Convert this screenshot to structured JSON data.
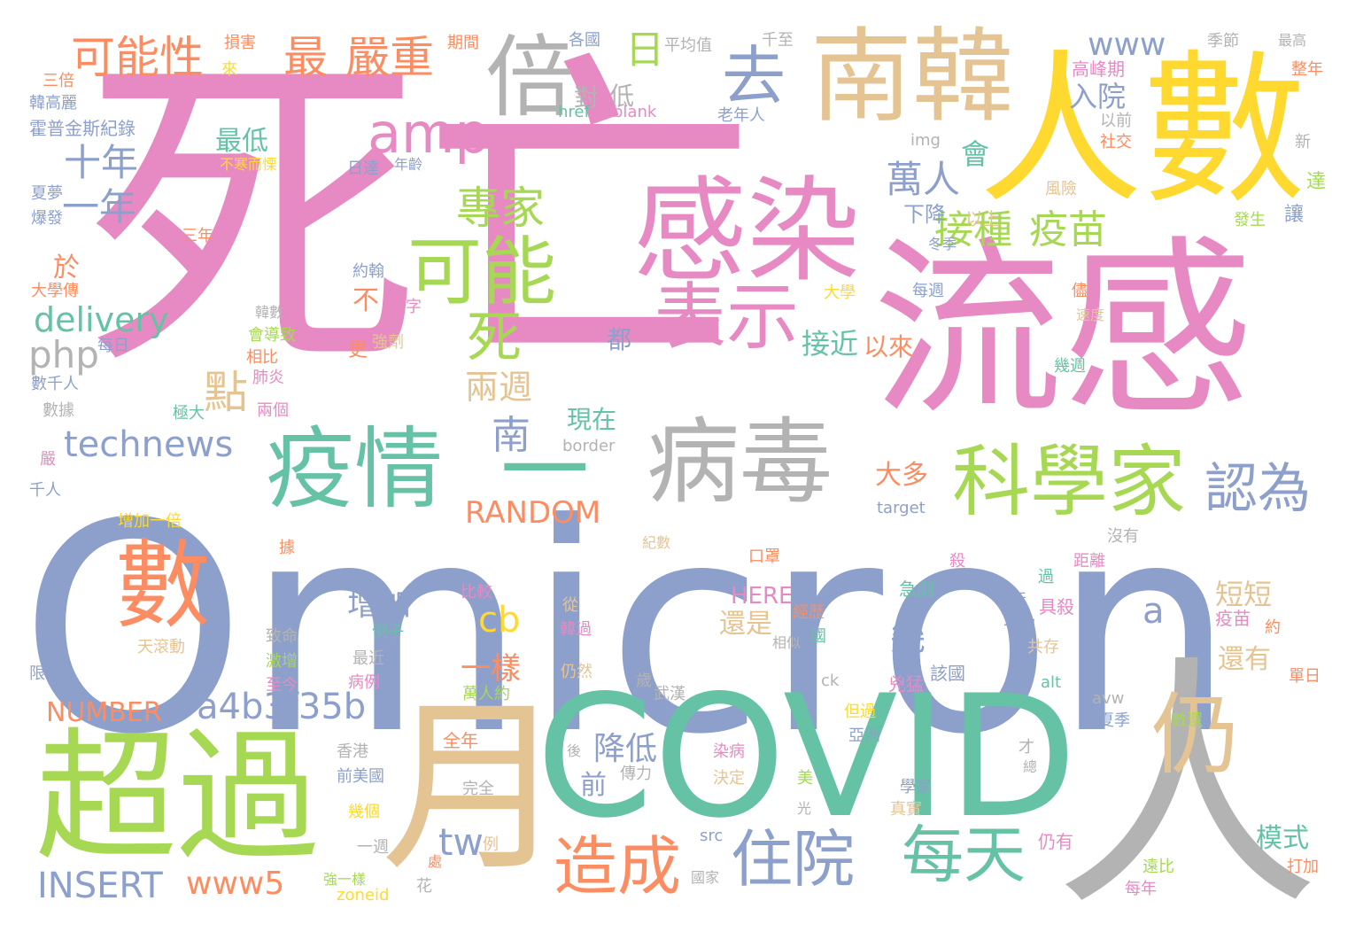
{
  "palette": {
    "blue": "#8da0cb",
    "pink": "#e78ac3",
    "green": "#66c2a5",
    "lime": "#a6d854",
    "orange": "#fc8d62",
    "yellow": "#ffd92f",
    "tan": "#e5c494",
    "gray": "#b3b3b3"
  },
  "words": [
    {
      "text": "死亡",
      "color": "pink"
    },
    {
      "text": "Omicron",
      "color": "blue"
    },
    {
      "text": "流感",
      "color": "pink"
    },
    {
      "text": "人數",
      "color": "yellow"
    },
    {
      "text": "感染",
      "color": "pink"
    },
    {
      "text": "南韓",
      "color": "tan"
    },
    {
      "text": "COVID",
      "color": "green"
    },
    {
      "text": "人",
      "color": "gray"
    },
    {
      "text": "月",
      "color": "tan"
    },
    {
      "text": "超過",
      "color": "lime"
    },
    {
      "text": "數",
      "color": "orange"
    },
    {
      "text": "疫情",
      "color": "green"
    },
    {
      "text": "病毒",
      "color": "gray"
    },
    {
      "text": "一",
      "color": "green"
    },
    {
      "text": "科學家",
      "color": "lime"
    },
    {
      "text": "仍",
      "color": "tan"
    },
    {
      "text": "可能",
      "color": "lime"
    },
    {
      "text": "表示",
      "color": "pink"
    },
    {
      "text": "倍",
      "color": "gray"
    },
    {
      "text": "去",
      "color": "blue"
    },
    {
      "text": "可能性",
      "color": "orange"
    },
    {
      "text": "最",
      "color": "orange"
    },
    {
      "text": "嚴重",
      "color": "orange"
    },
    {
      "text": "日",
      "color": "lime"
    },
    {
      "text": "amp",
      "color": "pink"
    },
    {
      "text": "www",
      "color": "blue"
    },
    {
      "text": "十年",
      "color": "blue"
    },
    {
      "text": "一年",
      "color": "blue"
    },
    {
      "text": "專家",
      "color": "lime"
    },
    {
      "text": "死",
      "color": "lime"
    },
    {
      "text": "接種",
      "color": "lime"
    },
    {
      "text": "疫苗",
      "color": "lime"
    },
    {
      "text": "萬人",
      "color": "blue"
    },
    {
      "text": "認為",
      "color": "blue"
    },
    {
      "text": "每天",
      "color": "green"
    },
    {
      "text": "住院",
      "color": "blue"
    },
    {
      "text": "造成",
      "color": "orange"
    },
    {
      "text": "delivery",
      "color": "green"
    },
    {
      "text": "php",
      "color": "gray"
    },
    {
      "text": "technews",
      "color": "blue"
    },
    {
      "text": "點",
      "color": "tan"
    },
    {
      "text": "兩週",
      "color": "tan"
    },
    {
      "text": "南",
      "color": "blue"
    },
    {
      "text": "RANDOM",
      "color": "orange"
    },
    {
      "text": "a4b3f35b",
      "color": "blue"
    },
    {
      "text": "NUMBER",
      "color": "orange"
    },
    {
      "text": "INSERT",
      "color": "blue"
    },
    {
      "text": "www5",
      "color": "orange"
    },
    {
      "text": "tw",
      "color": "blue"
    },
    {
      "text": "cb",
      "color": "yellow"
    },
    {
      "text": "n",
      "color": "blue"
    },
    {
      "text": "一樣",
      "color": "orange"
    },
    {
      "text": "降低",
      "color": "blue"
    },
    {
      "text": "前",
      "color": "blue"
    },
    {
      "text": "增加",
      "color": "blue"
    },
    {
      "text": "幾",
      "color": "blue"
    },
    {
      "text": "現在",
      "color": "green"
    },
    {
      "text": "大多",
      "color": "orange"
    },
    {
      "text": "最低",
      "color": "green"
    },
    {
      "text": "已",
      "color": "pink"
    },
    {
      "text": "會",
      "color": "green"
    },
    {
      "text": "入院",
      "color": "blue"
    },
    {
      "text": "對",
      "color": "gray"
    },
    {
      "text": "低",
      "color": "gray"
    },
    {
      "text": "下降",
      "color": "blue"
    },
    {
      "text": "以上",
      "color": "tan"
    },
    {
      "text": "接近",
      "color": "green"
    },
    {
      "text": "以來",
      "color": "orange"
    },
    {
      "text": "於",
      "color": "orange"
    },
    {
      "text": "不",
      "color": "orange"
    },
    {
      "text": "都",
      "color": "blue"
    },
    {
      "text": "HERE",
      "color": "pink"
    },
    {
      "text": "還是",
      "color": "tan"
    },
    {
      "text": "短短",
      "color": "tan"
    },
    {
      "text": "a",
      "color": "blue"
    },
    {
      "text": "還有",
      "color": "tan"
    },
    {
      "text": "模式",
      "color": "green"
    },
    {
      "text": "季節",
      "color": "gray"
    },
    {
      "text": "最高",
      "color": "gray"
    },
    {
      "text": "高峰期",
      "color": "pink"
    },
    {
      "text": "整年",
      "color": "orange"
    },
    {
      "text": "平均值",
      "color": "gray"
    },
    {
      "text": "各國",
      "color": "blue"
    },
    {
      "text": "千至",
      "color": "gray"
    },
    {
      "text": "期間",
      "color": "orange"
    },
    {
      "text": "損害",
      "color": "orange"
    },
    {
      "text": "來",
      "color": "yellow"
    },
    {
      "text": "三倍",
      "color": "orange"
    },
    {
      "text": "韓高麗",
      "color": "blue"
    },
    {
      "text": "霍普金斯紀錄",
      "color": "blue"
    },
    {
      "text": "不寒而慄",
      "color": "yellow"
    },
    {
      "text": "日達",
      "color": "blue"
    },
    {
      "text": "年齡",
      "color": "blue"
    },
    {
      "text": "夏夢",
      "color": "blue"
    },
    {
      "text": "爆發",
      "color": "blue"
    },
    {
      "text": "三年",
      "color": "orange"
    },
    {
      "text": "約翰",
      "color": "blue"
    },
    {
      "text": "大學傳",
      "color": "orange"
    },
    {
      "text": "數字",
      "color": "pink"
    },
    {
      "text": "韓數",
      "color": "gray"
    },
    {
      "text": "會導致",
      "color": "lime"
    },
    {
      "text": "每日",
      "color": "blue"
    },
    {
      "text": "強劑",
      "color": "tan"
    },
    {
      "text": "相比",
      "color": "orange"
    },
    {
      "text": "更",
      "color": "orange"
    },
    {
      "text": "肺炎",
      "color": "pink"
    },
    {
      "text": "數千人",
      "color": "blue"
    },
    {
      "text": "兩個",
      "color": "pink"
    },
    {
      "text": "極大",
      "color": "green"
    },
    {
      "text": "數據",
      "color": "gray"
    },
    {
      "text": "嚴",
      "color": "pink"
    },
    {
      "text": "千人",
      "color": "blue"
    },
    {
      "text": "增加一倍",
      "color": "yellow"
    },
    {
      "text": "據",
      "color": "orange"
    },
    {
      "text": "天滾動",
      "color": "tan"
    },
    {
      "text": "限制",
      "color": "blue"
    },
    {
      "text": "致命",
      "color": "gray"
    },
    {
      "text": "例子",
      "color": "green"
    },
    {
      "text": "最近",
      "color": "gray"
    },
    {
      "text": "激增",
      "color": "lime"
    },
    {
      "text": "病例",
      "color": "pink"
    },
    {
      "text": "至今",
      "color": "pink"
    },
    {
      "text": "比較",
      "color": "pink"
    },
    {
      "text": "從",
      "color": "tan"
    },
    {
      "text": "韓過",
      "color": "pink"
    },
    {
      "text": "口罩",
      "color": "orange"
    },
    {
      "text": "殺",
      "color": "pink"
    },
    {
      "text": "經歷",
      "color": "orange"
    },
    {
      "text": "國",
      "color": "green"
    },
    {
      "text": "相似",
      "color": "gray"
    },
    {
      "text": "急劇",
      "color": "green"
    },
    {
      "text": "兇猛",
      "color": "pink"
    },
    {
      "text": "該國",
      "color": "blue"
    },
    {
      "text": "距離",
      "color": "pink"
    },
    {
      "text": "沒有",
      "color": "gray"
    },
    {
      "text": "過",
      "color": "green"
    },
    {
      "text": "天",
      "color": "blue"
    },
    {
      "text": "具殺",
      "color": "pink"
    },
    {
      "text": "平均",
      "color": "blue"
    },
    {
      "text": "共存",
      "color": "tan"
    },
    {
      "text": "疫苗",
      "color": "pink"
    },
    {
      "text": "約",
      "color": "orange"
    },
    {
      "text": "單日",
      "color": "orange"
    },
    {
      "text": "武漢",
      "color": "gray"
    },
    {
      "text": "ck",
      "color": "gray"
    },
    {
      "text": "但過",
      "color": "yellow"
    },
    {
      "text": "亞洲",
      "color": "blue"
    },
    {
      "text": "alt",
      "color": "green"
    },
    {
      "text": "avw",
      "color": "gray"
    },
    {
      "text": "夏季",
      "color": "blue"
    },
    {
      "text": "數還",
      "color": "lime"
    },
    {
      "text": "萬人約",
      "color": "lime"
    },
    {
      "text": "仍然",
      "color": "tan"
    },
    {
      "text": "歲",
      "color": "gray"
    },
    {
      "text": "香港",
      "color": "gray"
    },
    {
      "text": "前美國",
      "color": "blue"
    },
    {
      "text": "全年",
      "color": "orange"
    },
    {
      "text": "完全",
      "color": "gray"
    },
    {
      "text": "後",
      "color": "gray"
    },
    {
      "text": "傳力",
      "color": "gray"
    },
    {
      "text": "染病",
      "color": "pink"
    },
    {
      "text": "決定",
      "color": "tan"
    },
    {
      "text": "美",
      "color": "lime"
    },
    {
      "text": "學家",
      "color": "blue"
    },
    {
      "text": "真實",
      "color": "tan"
    },
    {
      "text": "才",
      "color": "gray"
    },
    {
      "text": "總",
      "color": "gray"
    },
    {
      "text": "光",
      "color": "gray"
    },
    {
      "text": "幾個",
      "color": "yellow"
    },
    {
      "text": "一週",
      "color": "gray"
    },
    {
      "text": "仍有",
      "color": "pink"
    },
    {
      "text": "src",
      "color": "blue"
    },
    {
      "text": "遠比",
      "color": "lime"
    },
    {
      "text": "國家",
      "color": "gray"
    },
    {
      "text": "處",
      "color": "orange"
    },
    {
      "text": "打加",
      "color": "orange"
    },
    {
      "text": "每年",
      "color": "pink"
    },
    {
      "text": "強一樣",
      "color": "lime"
    },
    {
      "text": "zoneid",
      "color": "yellow"
    },
    {
      "text": "花",
      "color": "gray"
    },
    {
      "text": "例",
      "color": "tan"
    },
    {
      "text": "紀數",
      "color": "tan"
    },
    {
      "text": "target",
      "color": "blue"
    },
    {
      "text": "border",
      "color": "gray"
    },
    {
      "text": "img",
      "color": "gray"
    },
    {
      "text": "以前",
      "color": "gray"
    },
    {
      "text": "社交",
      "color": "orange"
    },
    {
      "text": "新",
      "color": "gray"
    },
    {
      "text": "風險",
      "color": "tan"
    },
    {
      "text": "達",
      "color": "lime"
    },
    {
      "text": "讓",
      "color": "blue"
    },
    {
      "text": "發生",
      "color": "lime"
    },
    {
      "text": "冬季",
      "color": "blue"
    },
    {
      "text": "每週",
      "color": "blue"
    },
    {
      "text": "大學",
      "color": "yellow"
    },
    {
      "text": "儘",
      "color": "orange"
    },
    {
      "text": "速度",
      "color": "tan"
    },
    {
      "text": "幾週",
      "color": "green"
    },
    {
      "text": "老年人",
      "color": "blue"
    },
    {
      "text": "href",
      "color": "green"
    },
    {
      "text": "blank",
      "color": "pink"
    }
  ]
}
